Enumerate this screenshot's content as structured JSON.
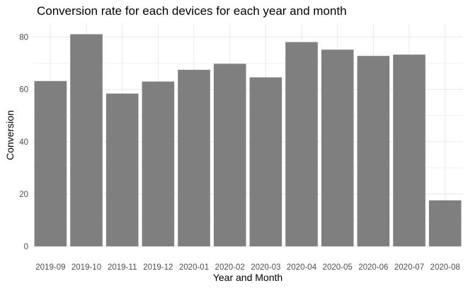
{
  "chart_data": {
    "type": "bar",
    "title": "Conversion rate for each devices for each year and month",
    "xlabel": "Year and Month",
    "ylabel": "Conversion",
    "categories": [
      "2019-09",
      "2019-10",
      "2019-11",
      "2019-12",
      "2020-01",
      "2020-02",
      "2020-03",
      "2020-04",
      "2020-05",
      "2020-06",
      "2020-07",
      "2020-08"
    ],
    "values": [
      63.2,
      81.1,
      58.4,
      63.0,
      67.5,
      69.8,
      64.6,
      78.1,
      75.2,
      72.8,
      73.3,
      17.6
    ],
    "ylim": [
      0,
      85
    ],
    "yticks": [
      0,
      20,
      40,
      60,
      80
    ],
    "grid": true,
    "bar_color": "#7f7f7f",
    "grid_color": "#ebebeb"
  }
}
